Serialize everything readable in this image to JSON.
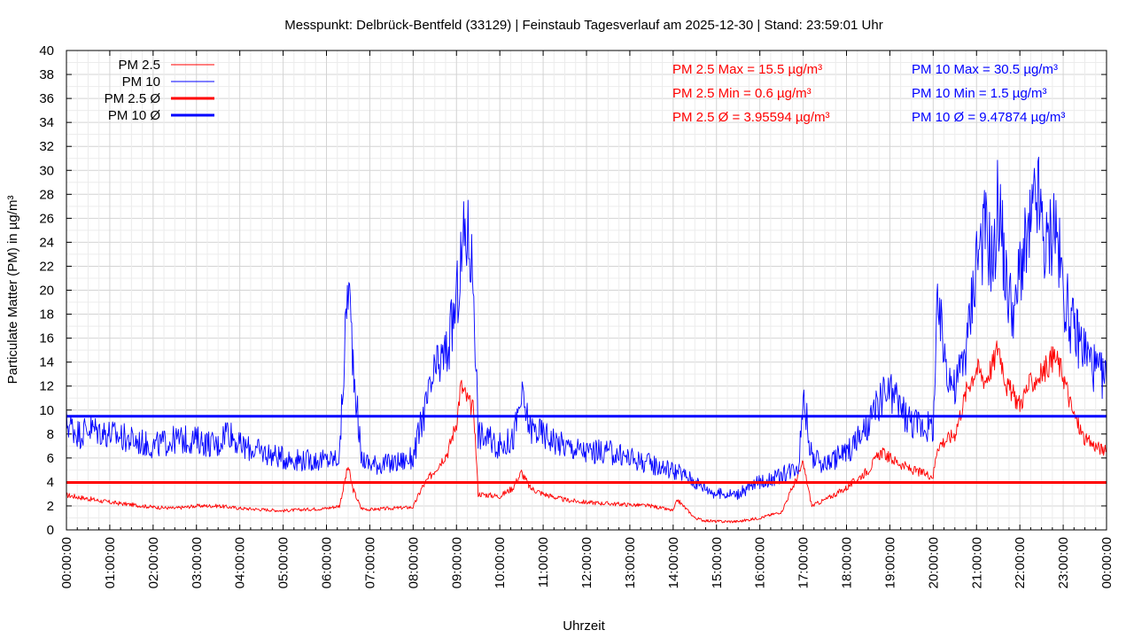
{
  "chart_data": {
    "type": "line",
    "title": "Messpunkt: Delbrück-Bentfeld (33129) | Feinstaub Tagesverlauf am 2025-12-30 | Stand: 23:59:01 Uhr",
    "xlabel": "Uhrzeit",
    "ylabel": "Particulate Matter (PM) in µg/m³",
    "xlim": [
      "00:00:00",
      "24:00:00"
    ],
    "ylim": [
      0,
      40
    ],
    "y_ticks": [
      "0",
      "2",
      "4",
      "6",
      "8",
      "10",
      "12",
      "14",
      "16",
      "18",
      "20",
      "22",
      "24",
      "26",
      "28",
      "30",
      "32",
      "34",
      "36",
      "38",
      "40"
    ],
    "x_ticks": [
      "00:00:00",
      "01:00:00",
      "02:00:00",
      "03:00:00",
      "04:00:00",
      "05:00:00",
      "06:00:00",
      "07:00:00",
      "08:00:00",
      "09:00:00",
      "10:00:00",
      "11:00:00",
      "12:00:00",
      "13:00:00",
      "14:00:00",
      "15:00:00",
      "16:00:00",
      "17:00:00",
      "18:00:00",
      "19:00:00",
      "20:00:00",
      "21:00:00",
      "22:00:00",
      "23:00:00",
      "00:00:00"
    ],
    "grid": true,
    "legend_position": "top-left",
    "x_unit": "hour of day",
    "series": [
      {
        "name": "PM 2.5",
        "color": "#ff0000",
        "style": "thin",
        "x": [
          0,
          0.5,
          1,
          1.5,
          2,
          2.5,
          3,
          3.5,
          4,
          4.5,
          5,
          5.5,
          6,
          6.3,
          6.5,
          6.6,
          6.8,
          7,
          7.5,
          8,
          8.2,
          8.5,
          8.8,
          9,
          9.1,
          9.3,
          9.4,
          9.5,
          10,
          10.3,
          10.5,
          10.7,
          11,
          11.5,
          12,
          12.5,
          13,
          13.5,
          14,
          14.1,
          14.5,
          14.7,
          15,
          15.5,
          16,
          16.5,
          17,
          17.2,
          17.5,
          18,
          18.5,
          18.8,
          19,
          19.5,
          20,
          20.1,
          20.5,
          20.8,
          21,
          21.2,
          21.4,
          21.5,
          21.7,
          22,
          22.2,
          22.5,
          22.8,
          23,
          23.2,
          23.5,
          24
        ],
        "values": [
          2.9,
          2.6,
          2.3,
          2.1,
          1.9,
          1.8,
          2.0,
          2.0,
          1.8,
          1.7,
          1.6,
          1.7,
          1.8,
          2.0,
          5.3,
          3.5,
          1.8,
          1.7,
          1.8,
          1.9,
          3.5,
          5.0,
          6.5,
          9.0,
          12.0,
          10.5,
          10.0,
          3.0,
          2.8,
          3.5,
          4.8,
          3.5,
          3.0,
          2.5,
          2.3,
          2.2,
          2.1,
          2.0,
          1.6,
          2.5,
          1.0,
          0.8,
          0.7,
          0.7,
          1.0,
          1.5,
          5.5,
          2.0,
          2.5,
          3.5,
          5.0,
          6.5,
          6.0,
          5.0,
          4.5,
          7.0,
          8.0,
          12.0,
          13.5,
          12.5,
          14.0,
          15.5,
          12.0,
          10.5,
          12.0,
          13.0,
          14.5,
          13.0,
          10.0,
          7.5,
          6.5
        ]
      },
      {
        "name": "PM 10",
        "color": "#0000ff",
        "style": "thin",
        "x": [
          0,
          0.3,
          0.5,
          1,
          1.5,
          2,
          2.5,
          3,
          3.5,
          3.7,
          4,
          4.5,
          5,
          5.5,
          6,
          6.3,
          6.5,
          6.6,
          6.8,
          7,
          7.5,
          8,
          8.2,
          8.5,
          8.8,
          9,
          9.2,
          9.3,
          9.4,
          9.5,
          10,
          10.3,
          10.5,
          10.7,
          11,
          11.5,
          12,
          12.5,
          13,
          13.5,
          14,
          14.3,
          14.5,
          15,
          15.5,
          16,
          16.5,
          16.9,
          17,
          17.2,
          17.5,
          18,
          18.5,
          18.8,
          19,
          19.5,
          20,
          20.1,
          20.3,
          20.5,
          20.8,
          21,
          21.2,
          21.4,
          21.5,
          21.7,
          21.9,
          22,
          22.2,
          22.4,
          22.6,
          22.8,
          23,
          23.2,
          23.5,
          23.8,
          24
        ],
        "values": [
          9.0,
          8.0,
          8.5,
          8.0,
          7.5,
          7.0,
          7.5,
          7.5,
          7.0,
          8.5,
          7.0,
          6.5,
          6.0,
          5.8,
          5.8,
          6.0,
          21.0,
          15.0,
          6.0,
          5.5,
          5.5,
          6.0,
          9.0,
          13.0,
          15.0,
          19.0,
          25.0,
          24.0,
          20.5,
          8.0,
          7.0,
          7.5,
          11.0,
          8.5,
          8.0,
          7.0,
          6.5,
          6.5,
          6.0,
          5.5,
          5.0,
          4.5,
          4.0,
          3.0,
          3.0,
          4.0,
          4.5,
          5.5,
          11.5,
          6.0,
          5.5,
          6.5,
          8.5,
          11.0,
          11.5,
          9.0,
          8.5,
          18.5,
          14.0,
          11.5,
          16.0,
          23.0,
          25.0,
          22.0,
          28.0,
          20.0,
          18.0,
          22.0,
          24.0,
          28.0,
          23.0,
          26.0,
          20.0,
          17.0,
          15.0,
          13.0,
          12.5
        ]
      },
      {
        "name": "PM 2.5 Ø",
        "color": "#ff0000",
        "style": "thick",
        "x": [
          0,
          24
        ],
        "values": [
          3.95594,
          3.95594
        ]
      },
      {
        "name": "PM 10 Ø",
        "color": "#0000ff",
        "style": "thick",
        "x": [
          0,
          24
        ],
        "values": [
          9.47874,
          9.47874
        ]
      }
    ],
    "stats": {
      "pm25": [
        "PM 2.5 Max = 15.5 µg/m³",
        "PM 2.5 Min = 0.6 µg/m³",
        "PM 2.5 Ø = 3.95594 µg/m³"
      ],
      "pm10": [
        "PM 10 Max = 30.5 µg/m³",
        "PM 10 Min = 1.5 µg/m³",
        "PM 10 Ø = 9.47874 µg/m³"
      ]
    }
  }
}
